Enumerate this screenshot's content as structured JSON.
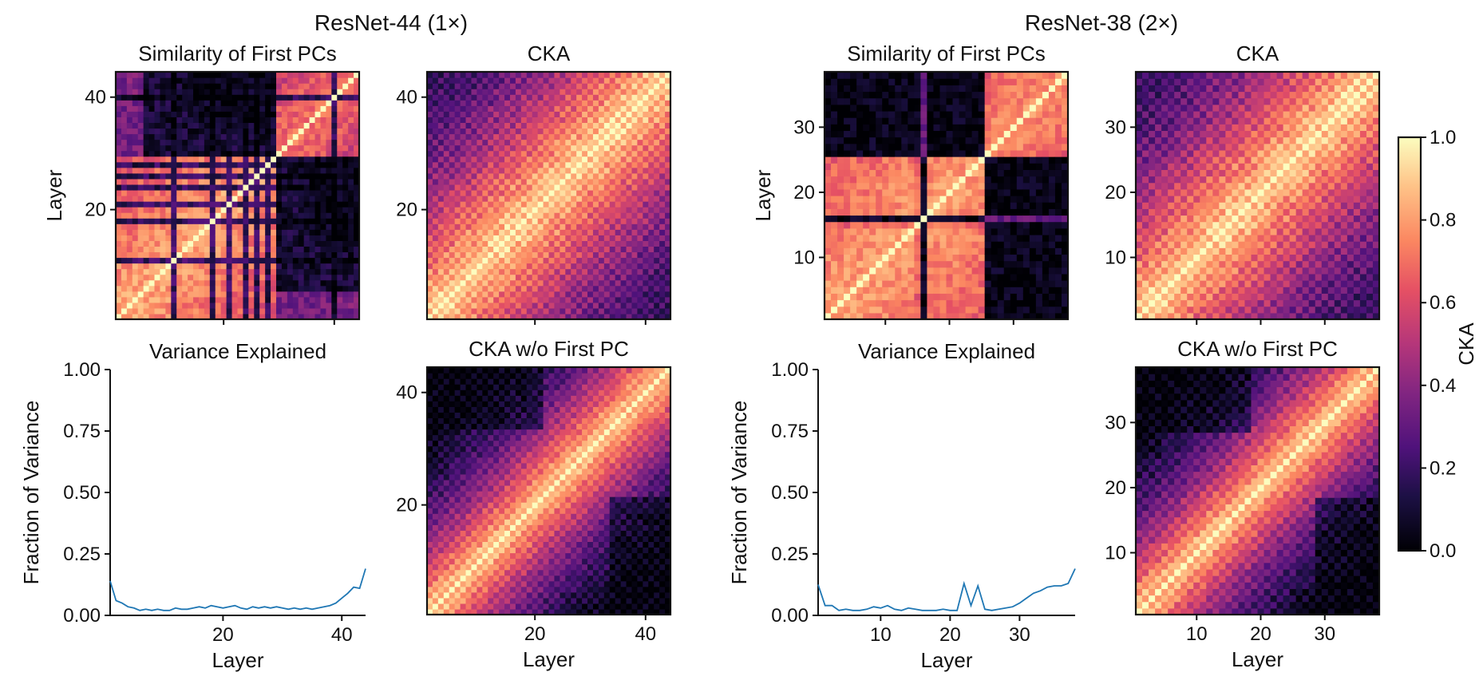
{
  "figure": {
    "group_titles": [
      "ResNet-44 (1×)",
      "ResNet-38 (2×)"
    ],
    "colorbar": {
      "label": "CKA",
      "ticks": [
        "0.0",
        "0.2",
        "0.4",
        "0.6",
        "0.8",
        "1.0"
      ],
      "range": [
        0,
        1
      ],
      "colormap": "magma"
    }
  },
  "chart_data": [
    {
      "type": "heatmap",
      "model": "ResNet-44 (1×)",
      "title": "Similarity of First PCs",
      "ylabel": "Layer",
      "n_layers": 44,
      "x_ticks": [
        20,
        40
      ],
      "y_ticks": [
        "20",
        "40"
      ],
      "x_tick_labels": false,
      "pattern": "first_pc_44"
    },
    {
      "type": "heatmap",
      "model": "ResNet-44 (1×)",
      "title": "CKA",
      "n_layers": 44,
      "x_ticks": [
        20,
        40
      ],
      "y_ticks": [
        "20",
        "40"
      ],
      "x_tick_labels": false,
      "pattern": "cka_44"
    },
    {
      "type": "line",
      "model": "ResNet-44 (1×)",
      "title": "Variance Explained",
      "xlabel": "Layer",
      "ylabel": "Fraction of Variance",
      "x_range": [
        1,
        44
      ],
      "ylim": [
        0,
        1
      ],
      "x_ticks": [
        "20",
        "40"
      ],
      "y_ticks": [
        "0.00",
        "0.25",
        "0.50",
        "0.75",
        "1.00"
      ],
      "color": "#1f77b4",
      "x": [
        1,
        2,
        3,
        4,
        5,
        6,
        7,
        8,
        9,
        10,
        11,
        12,
        13,
        14,
        15,
        16,
        17,
        18,
        19,
        20,
        21,
        22,
        23,
        24,
        25,
        26,
        27,
        28,
        29,
        30,
        31,
        32,
        33,
        34,
        35,
        36,
        37,
        38,
        39,
        40,
        41,
        42,
        43,
        44
      ],
      "values": [
        0.14,
        0.06,
        0.05,
        0.035,
        0.03,
        0.02,
        0.025,
        0.02,
        0.025,
        0.02,
        0.02,
        0.03,
        0.025,
        0.025,
        0.03,
        0.035,
        0.03,
        0.04,
        0.035,
        0.03,
        0.035,
        0.04,
        0.03,
        0.025,
        0.035,
        0.03,
        0.035,
        0.03,
        0.035,
        0.03,
        0.025,
        0.03,
        0.025,
        0.03,
        0.025,
        0.03,
        0.035,
        0.04,
        0.05,
        0.07,
        0.09,
        0.115,
        0.11,
        0.19
      ]
    },
    {
      "type": "heatmap",
      "model": "ResNet-44 (1×)",
      "title": "CKA w/o First PC",
      "xlabel": "Layer",
      "n_layers": 44,
      "x_ticks": [
        "20",
        "40"
      ],
      "y_ticks": [
        "20",
        "40"
      ],
      "x_tick_labels": true,
      "pattern": "cka_wo_44"
    },
    {
      "type": "heatmap",
      "model": "ResNet-38 (2×)",
      "title": "Similarity of First PCs",
      "ylabel": "Layer",
      "n_layers": 38,
      "x_ticks": [
        10,
        20,
        30
      ],
      "y_ticks": [
        "10",
        "20",
        "30"
      ],
      "x_tick_labels": false,
      "pattern": "first_pc_38"
    },
    {
      "type": "heatmap",
      "model": "ResNet-38 (2×)",
      "title": "CKA",
      "n_layers": 38,
      "x_ticks": [
        10,
        20,
        30
      ],
      "y_ticks": [
        "10",
        "20",
        "30"
      ],
      "x_tick_labels": false,
      "pattern": "cka_38"
    },
    {
      "type": "line",
      "model": "ResNet-38 (2×)",
      "title": "Variance Explained",
      "xlabel": "Layer",
      "ylabel": "Fraction of Variance",
      "x_range": [
        1,
        38
      ],
      "ylim": [
        0,
        1
      ],
      "x_ticks": [
        "10",
        "20",
        "30"
      ],
      "y_ticks": [
        "0.00",
        "0.25",
        "0.50",
        "0.75",
        "1.00"
      ],
      "color": "#1f77b4",
      "x": [
        1,
        2,
        3,
        4,
        5,
        6,
        7,
        8,
        9,
        10,
        11,
        12,
        13,
        14,
        15,
        16,
        17,
        18,
        19,
        20,
        21,
        22,
        23,
        24,
        25,
        26,
        27,
        28,
        29,
        30,
        31,
        32,
        33,
        34,
        35,
        36,
        37,
        38
      ],
      "values": [
        0.125,
        0.04,
        0.04,
        0.02,
        0.025,
        0.02,
        0.02,
        0.025,
        0.035,
        0.03,
        0.04,
        0.025,
        0.02,
        0.03,
        0.025,
        0.02,
        0.02,
        0.02,
        0.025,
        0.02,
        0.02,
        0.13,
        0.04,
        0.12,
        0.025,
        0.02,
        0.025,
        0.03,
        0.035,
        0.05,
        0.07,
        0.09,
        0.1,
        0.115,
        0.12,
        0.12,
        0.13,
        0.19
      ]
    },
    {
      "type": "heatmap",
      "model": "ResNet-38 (2×)",
      "title": "CKA w/o First PC",
      "xlabel": "Layer",
      "n_layers": 38,
      "x_ticks": [
        "10",
        "20",
        "30"
      ],
      "y_ticks": [
        "10",
        "20",
        "30"
      ],
      "x_tick_labels": true,
      "pattern": "cka_wo_38"
    }
  ]
}
